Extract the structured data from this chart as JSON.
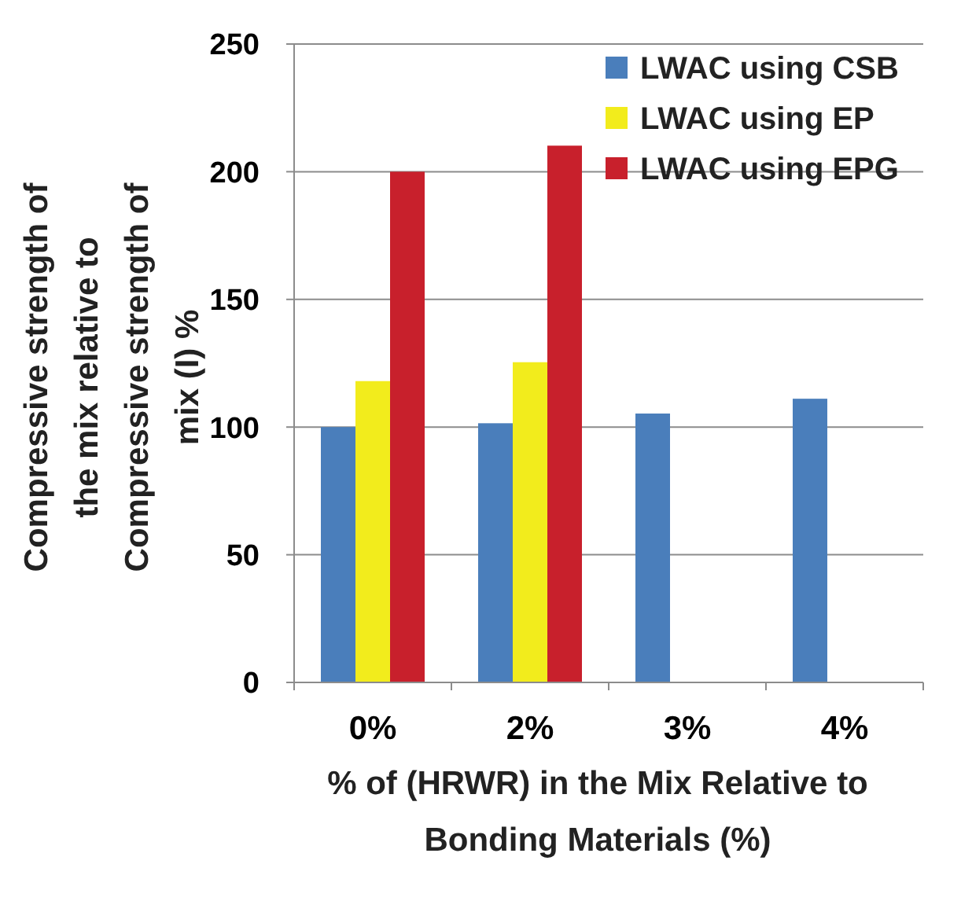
{
  "chart_data": {
    "type": "bar",
    "xlabel": "% of (HRWR) in the Mix Relative to Bonding Materials (%)",
    "ylabel": "Compressive strength of the mix relative to Compressive strength of mix (I) %",
    "categories": [
      "0%",
      "2%",
      "3%",
      "4%"
    ],
    "series": [
      {
        "name": "LWAC using CSB",
        "color": "#4a7ebb",
        "values": [
          100,
          101.5,
          105.3,
          111.1
        ]
      },
      {
        "name": "LWAC using EP",
        "color": "#f2ec1c",
        "values": [
          118,
          125.4,
          null,
          null
        ]
      },
      {
        "name": "LWAC using EPG",
        "color": "#c8202c",
        "values": [
          200,
          210.2,
          null,
          null
        ]
      }
    ],
    "ylim": [
      0,
      250
    ],
    "yticks": [
      0,
      50,
      100,
      150,
      200,
      250
    ],
    "grid": "y",
    "legend": "top right"
  }
}
